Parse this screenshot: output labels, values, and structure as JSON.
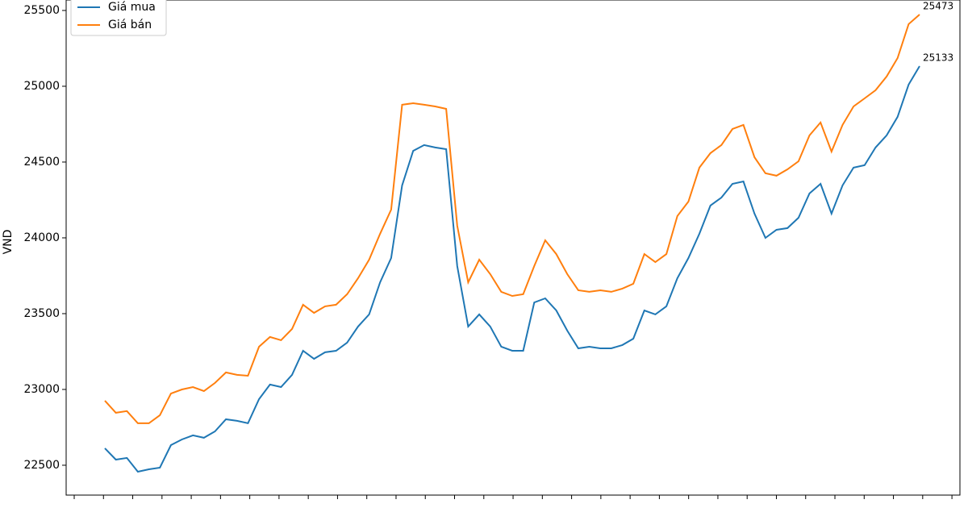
{
  "chart_data": {
    "type": "line",
    "y_label": "VND",
    "categories": [
      null,
      null,
      null,
      null,
      null,
      null,
      null,
      null,
      null,
      null,
      null,
      null,
      null,
      null,
      null,
      null,
      null,
      null,
      null,
      null,
      null,
      null,
      null,
      null,
      null,
      null,
      null,
      null,
      null,
      null,
      null,
      null,
      null,
      null,
      null,
      null,
      null,
      null,
      null,
      null,
      null,
      null,
      null,
      null,
      null,
      null,
      null,
      null,
      null,
      null,
      null,
      null,
      null,
      null,
      null,
      null,
      null,
      null,
      null,
      null,
      null,
      null,
      null,
      null,
      null,
      null,
      null,
      null,
      null,
      null,
      null,
      null,
      null,
      null,
      null
    ],
    "series": [
      {
        "name": "Giá mua",
        "color": "#1f77b4",
        "values": [
          22612,
          22537,
          22548,
          22457,
          22473,
          22484,
          22633,
          22670,
          22697,
          22681,
          22723,
          22803,
          22793,
          22777,
          22936,
          23032,
          23016,
          23096,
          23255,
          23202,
          23245,
          23255,
          23309,
          23415,
          23495,
          23707,
          23867,
          24346,
          24574,
          24612,
          24596,
          24585,
          23814,
          23415,
          23495,
          23415,
          23282,
          23255,
          23255,
          23574,
          23601,
          23521,
          23388,
          23271,
          23282,
          23271,
          23271,
          23293,
          23335,
          23521,
          23495,
          23548,
          23734,
          23867,
          24027,
          24213,
          24266,
          24356,
          24372,
          24160,
          24000,
          24053,
          24064,
          24133,
          24293,
          24356,
          24160,
          24346,
          24463,
          24479,
          24596,
          24676,
          24798,
          25011,
          25133
        ]
      },
      {
        "name": "Giá bán",
        "color": "#ff7f0e",
        "values": [
          22926,
          22846,
          22857,
          22777,
          22777,
          22830,
          22973,
          23000,
          23016,
          22989,
          23043,
          23112,
          23096,
          23090,
          23282,
          23346,
          23325,
          23399,
          23559,
          23505,
          23548,
          23559,
          23628,
          23734,
          23856,
          24027,
          24186,
          24878,
          24888,
          24878,
          24867,
          24851,
          24080,
          23707,
          23856,
          23761,
          23644,
          23617,
          23628,
          23814,
          23984,
          23893,
          23761,
          23654,
          23644,
          23654,
          23644,
          23665,
          23697,
          23893,
          23840,
          23893,
          24144,
          24239,
          24463,
          24559,
          24612,
          24718,
          24745,
          24532,
          24426,
          24410,
          24452,
          24505,
          24676,
          24761,
          24569,
          24745,
          24867,
          24920,
          24974,
          25064,
          25186,
          25410,
          25473
        ]
      }
    ],
    "ylim": [
      22303,
      25569
    ],
    "yticks": [
      22500,
      23000,
      23500,
      24000,
      24500,
      25000,
      25500
    ],
    "grid": false,
    "legend": "upper left"
  }
}
